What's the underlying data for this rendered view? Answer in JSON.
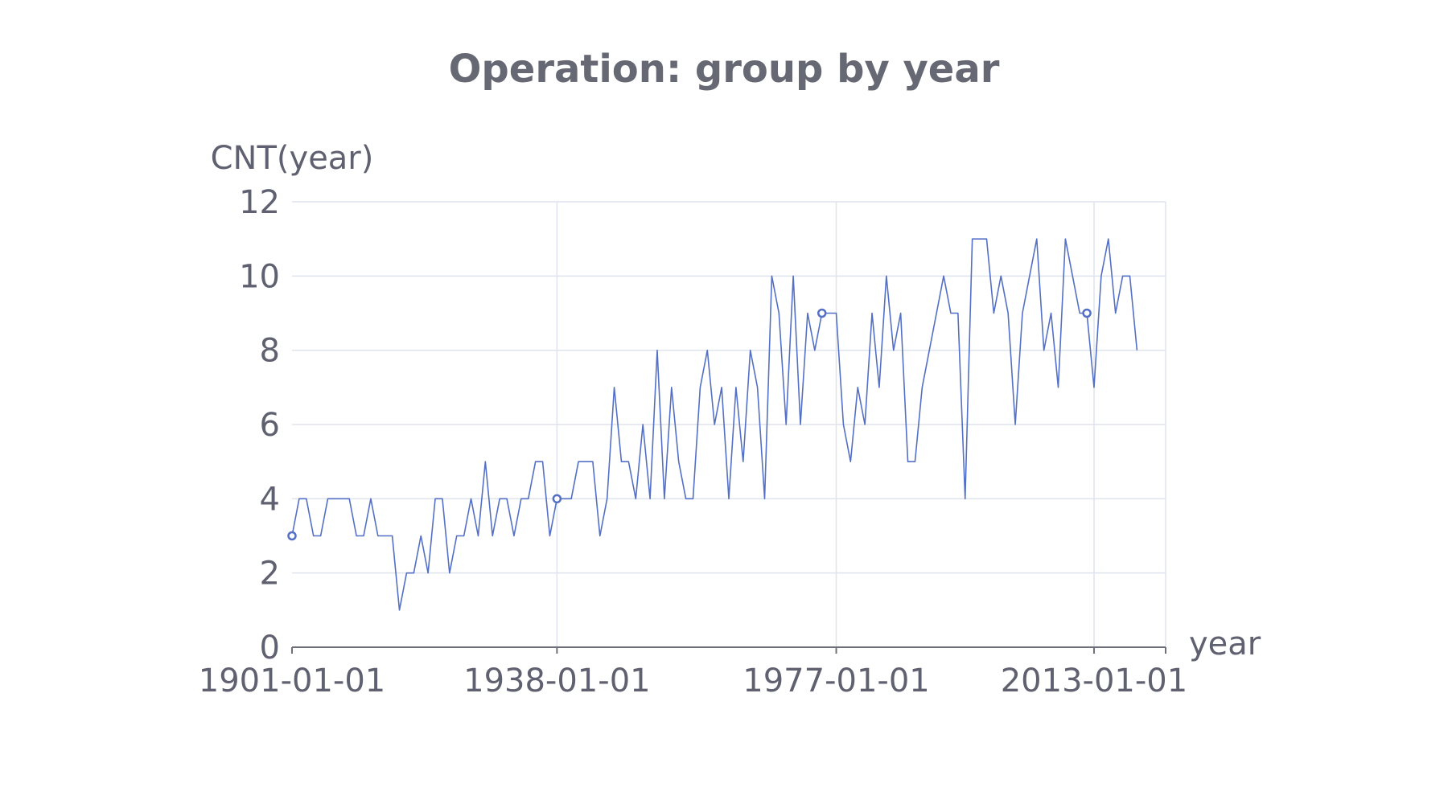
{
  "chart_data": {
    "type": "line",
    "title": "Operation: group by year",
    "xlabel": "year",
    "ylabel": "CNT(year)",
    "ylim": [
      0,
      12
    ],
    "yticks": [
      0,
      2,
      4,
      6,
      8,
      10,
      12
    ],
    "x_tick_labels": [
      "1901-01-01",
      "1938-01-01",
      "1977-01-01",
      "2013-01-01"
    ],
    "x_range": [
      1901,
      2023
    ],
    "grid": true,
    "legend": "none",
    "color": "#5470c6",
    "series": [
      {
        "x": [
          1901,
          1902,
          1903,
          1904,
          1905,
          1906,
          1907,
          1908,
          1909,
          1910,
          1911,
          1912,
          1913,
          1914,
          1915,
          1916,
          1917,
          1918,
          1919,
          1920,
          1921,
          1922,
          1923,
          1924,
          1925,
          1926,
          1927,
          1928,
          1929,
          1930,
          1931,
          1932,
          1933,
          1934,
          1935,
          1936,
          1937,
          1938,
          1939,
          1940,
          1941,
          1942,
          1943,
          1944,
          1945,
          1946,
          1947,
          1948,
          1949,
          1950,
          1951,
          1952,
          1953,
          1954,
          1955,
          1956,
          1957,
          1958,
          1959,
          1960,
          1961,
          1962,
          1963,
          1964,
          1965,
          1966,
          1967,
          1968,
          1969,
          1970,
          1971,
          1972,
          1973,
          1974,
          1975,
          1976,
          1977,
          1978,
          1979,
          1980,
          1981,
          1982,
          1983,
          1984,
          1985,
          1986,
          1987,
          1988,
          1989,
          1990,
          1991,
          1992,
          1993,
          1994,
          1995,
          1996,
          1997,
          1998,
          1999,
          2000,
          2001,
          2002,
          2003,
          2004,
          2005,
          2006,
          2007,
          2008,
          2009,
          2010,
          2011,
          2012,
          2013,
          2014,
          2015,
          2016,
          2017,
          2018,
          2019,
          2020,
          2021,
          2022
        ],
        "y": [
          3,
          4,
          4,
          3,
          3,
          4,
          4,
          4,
          4,
          3,
          3,
          4,
          3,
          3,
          3,
          1,
          2,
          2,
          3,
          2,
          4,
          4,
          2,
          3,
          3,
          4,
          3,
          5,
          3,
          4,
          4,
          3,
          4,
          4,
          5,
          5,
          3,
          4,
          4,
          4,
          5,
          5,
          5,
          3,
          4,
          7,
          5,
          5,
          4,
          6,
          4,
          8,
          4,
          7,
          5,
          4,
          4,
          7,
          8,
          6,
          7,
          4,
          7,
          5,
          8,
          7,
          4,
          10,
          9,
          6,
          10,
          6,
          9,
          8,
          9,
          9,
          9,
          6,
          5,
          7,
          6,
          9,
          7,
          10,
          8,
          9,
          5,
          5,
          7,
          8,
          9,
          10,
          9,
          9,
          4,
          11,
          11,
          11,
          9,
          10,
          9,
          6,
          9,
          10,
          11,
          8,
          9,
          7,
          11,
          10,
          9,
          9,
          7,
          10,
          11,
          9,
          10,
          10,
          8,
          null,
          null,
          null
        ],
        "markers": [
          0,
          37,
          74,
          111
        ]
      }
    ]
  }
}
